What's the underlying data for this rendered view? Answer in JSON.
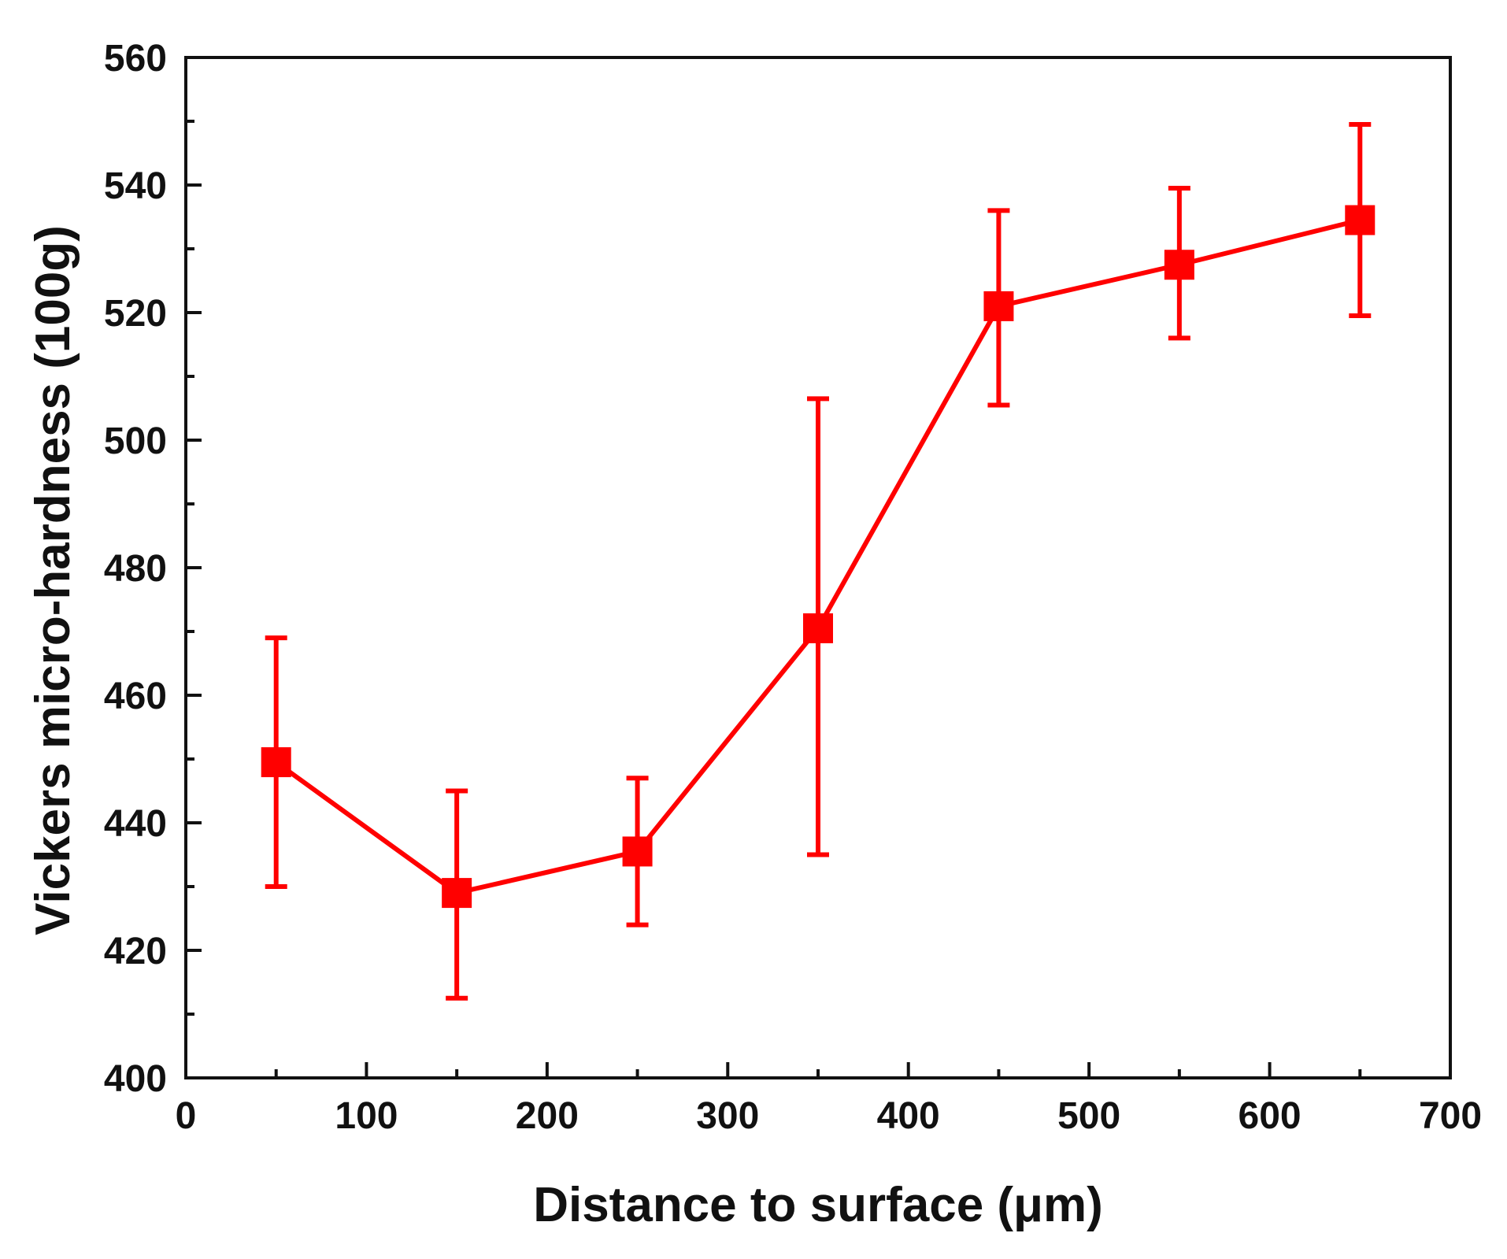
{
  "chart_data": {
    "type": "line",
    "title": "",
    "xlabel": "Distance to surface (μm)",
    "ylabel": "Vickers micro-hardness (100g)",
    "xlim": [
      0,
      700
    ],
    "ylim": [
      400,
      560
    ],
    "xticks": [
      0,
      100,
      200,
      300,
      400,
      500,
      600,
      700
    ],
    "yticks": [
      400,
      420,
      440,
      460,
      480,
      500,
      520,
      540,
      560
    ],
    "xtick_labels": [
      "0",
      "100",
      "200",
      "300",
      "400",
      "500",
      "600",
      "700"
    ],
    "ytick_labels": [
      "400",
      "420",
      "440",
      "460",
      "480",
      "500",
      "520",
      "540",
      "560"
    ],
    "x_minor_ticks": [
      50,
      150,
      250,
      350,
      450,
      550,
      650
    ],
    "y_minor_ticks": [
      410,
      430,
      450,
      470,
      490,
      510,
      530,
      550
    ],
    "grid": false,
    "legend": null,
    "series": [
      {
        "name": "Vickers micro-hardness",
        "color": "#ff0000",
        "marker": "square",
        "x": [
          50,
          150,
          250,
          350,
          450,
          550,
          650
        ],
        "y": [
          449.5,
          429,
          435.5,
          470.5,
          521,
          527.5,
          534.5
        ],
        "err_lower": [
          430,
          412.5,
          424,
          435,
          505.5,
          516,
          519.5
        ],
        "err_upper": [
          469,
          445,
          447,
          506.5,
          536,
          539.5,
          549.5
        ]
      }
    ]
  }
}
